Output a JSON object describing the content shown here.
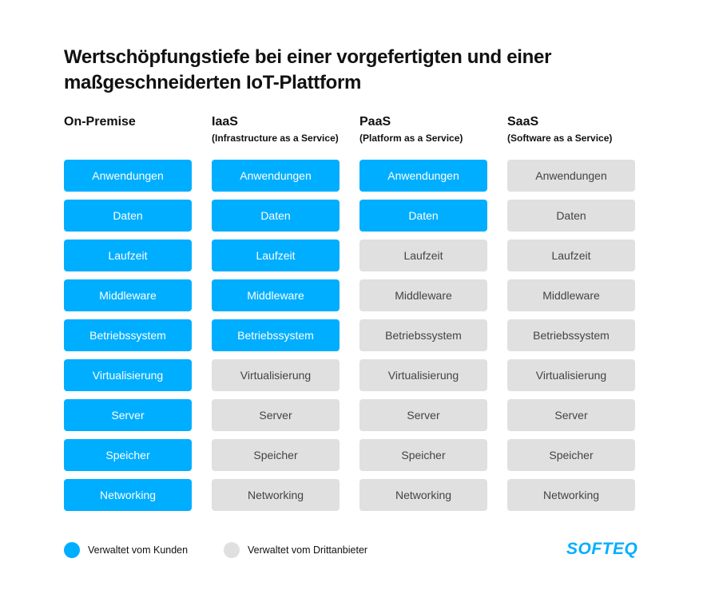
{
  "title": "Wertschöpfungstiefe bei einer vorgefertigten und einer maßgeschneiderten IoT-Plattform",
  "layers": [
    "Anwendungen",
    "Daten",
    "Laufzeit",
    "Middleware",
    "Betriebssystem",
    "Virtualisierung",
    "Server",
    "Speicher",
    "Networking"
  ],
  "columns": [
    {
      "title": "On-Premise",
      "subtitle": "",
      "customer_managed_count": 9
    },
    {
      "title": "IaaS",
      "subtitle": "(Infrastructure as a Service)",
      "customer_managed_count": 5
    },
    {
      "title": "PaaS",
      "subtitle": "(Platform as a Service)",
      "customer_managed_count": 2
    },
    {
      "title": "SaaS",
      "subtitle": "(Software as a Service)",
      "customer_managed_count": 0
    }
  ],
  "legend": {
    "customer": "Verwaltet vom Kunden",
    "third_party": "Verwaltet vom Drittanbieter"
  },
  "colors": {
    "customer": "#00aeff",
    "third_party": "#e0e0e0"
  },
  "logo": "SOFTEQ"
}
